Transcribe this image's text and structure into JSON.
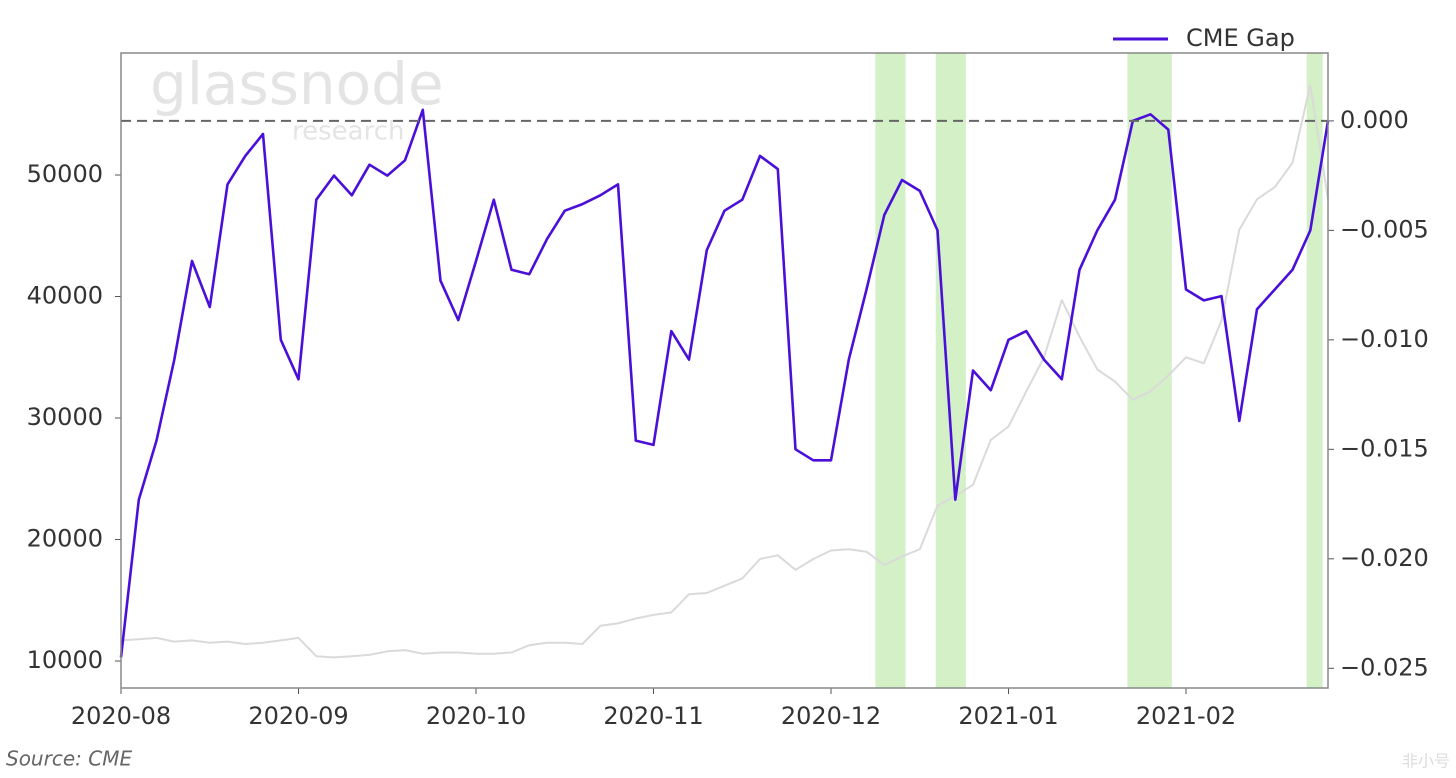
{
  "chart_data": {
    "type": "line",
    "watermark": "glassnode",
    "watermark_sub": "research",
    "source": "Source: CME",
    "corner_mark": "非小号",
    "legend": "upper right",
    "categories": [
      "2020-08",
      null,
      null,
      null,
      null,
      null,
      null,
      null,
      null,
      null,
      "2020-09",
      null,
      null,
      null,
      null,
      null,
      null,
      null,
      null,
      null,
      "2020-10",
      null,
      null,
      null,
      null,
      null,
      null,
      null,
      null,
      null,
      "2020-11",
      null,
      null,
      null,
      null,
      null,
      null,
      null,
      null,
      null,
      "2020-12",
      null,
      null,
      null,
      null,
      null,
      null,
      null,
      null,
      null,
      "2021-01",
      null,
      null,
      null,
      null,
      null,
      null,
      null,
      null,
      null,
      "2021-02",
      null,
      null,
      null,
      null,
      null,
      null,
      null,
      null
    ],
    "ylim": [
      7780,
      60040
    ],
    "yticks": [
      10000,
      20000,
      30000,
      40000,
      50000
    ],
    "y2lim": [
      -0.0259,
      0.0031
    ],
    "y2ticks": [
      {
        "value": 0,
        "label": "0.000"
      },
      {
        "value": -0.005,
        "label": "−0.005"
      },
      {
        "value": -0.01,
        "label": "−0.010"
      },
      {
        "value": -0.015,
        "label": "−0.015"
      },
      {
        "value": -0.02,
        "label": "−0.020"
      },
      {
        "value": -0.025,
        "label": "−0.025"
      }
    ],
    "y2_reference": 0,
    "shaded_spans": [
      [
        42.5,
        44.2
      ],
      [
        45.9,
        47.6
      ],
      [
        56.7,
        59.2
      ],
      [
        66.8,
        67.7
      ]
    ],
    "span_color": "#d3f0c6",
    "series": [
      {
        "color": "#dadada",
        "values": [
          11700,
          11800,
          11900,
          11600,
          11700,
          11500,
          11600,
          11400,
          11500,
          11700,
          11900,
          10400,
          10300,
          10400,
          10500,
          10800,
          10900,
          10600,
          10700,
          10700,
          10600,
          10600,
          10700,
          11300,
          11500,
          11500,
          11400,
          12900,
          13100,
          13500,
          13800,
          14000,
          15500,
          15600,
          16200,
          16800,
          18400,
          18700,
          17500,
          18400,
          19100,
          19200,
          19000,
          17900,
          18600,
          19200,
          22800,
          23600,
          24500,
          28200,
          29300,
          32200,
          35000,
          39700,
          36700,
          34000,
          33000,
          31500,
          32200,
          33500,
          35000,
          34500,
          38000,
          45500,
          48000,
          49000,
          51000,
          57400,
          48000
        ]
      },
      {
        "name": "CME Gap",
        "color": "#4a0fd8",
        "axis": "y2",
        "values": [
          -0.0245,
          -0.0173,
          -0.0146,
          -0.0109,
          -0.0064,
          -0.0085,
          -0.0029,
          -0.0016,
          -0.0006,
          -0.01,
          -0.0118,
          -0.0036,
          -0.0025,
          -0.0034,
          -0.002,
          -0.0025,
          -0.0018,
          0.0005,
          -0.0073,
          -0.0091,
          -0.0064,
          -0.0036,
          -0.0068,
          -0.007,
          -0.0054,
          -0.0041,
          -0.0038,
          -0.0034,
          -0.0029,
          -0.0146,
          -0.0148,
          -0.0096,
          -0.0109,
          -0.0059,
          -0.0041,
          -0.0036,
          -0.0016,
          -0.0022,
          -0.015,
          -0.0155,
          -0.0155,
          -0.0109,
          -0.0077,
          -0.0043,
          -0.0027,
          -0.0032,
          -0.005,
          -0.0173,
          -0.0114,
          -0.0123,
          -0.01,
          -0.0096,
          -0.0109,
          -0.0118,
          -0.0068,
          -0.005,
          -0.0036,
          0.0,
          0.0003,
          -0.0004,
          -0.0077,
          -0.0082,
          -0.008,
          -0.0137,
          -0.0086,
          -0.0077,
          -0.0068,
          -0.005,
          0.0
        ]
      }
    ]
  }
}
